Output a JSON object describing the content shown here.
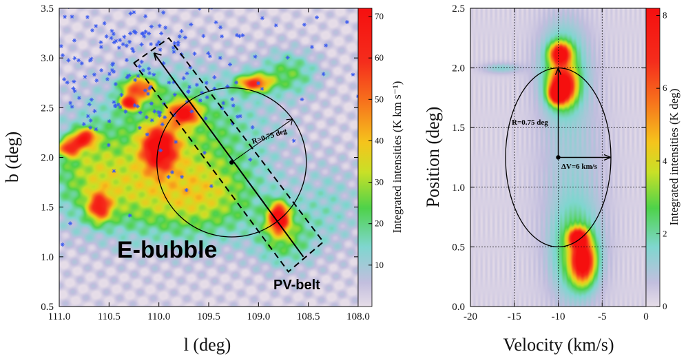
{
  "chart_data": [
    {
      "type": "heatmap",
      "panel": "left",
      "xlabel": "l (deg)",
      "ylabel": "b (deg)",
      "xlim": [
        111.0,
        108.0
      ],
      "ylim": [
        0.5,
        3.5
      ],
      "xticks": [
        "111.0",
        "110.5",
        "110.0",
        "109.5",
        "109.0",
        "108.5",
        "108.0"
      ],
      "yticks": [
        "0.5",
        "1.0",
        "1.5",
        "2.0",
        "2.5",
        "3.0",
        "3.5"
      ],
      "colorbar": {
        "label": "Integrated intensities (K km s⁻¹)",
        "range": [
          0,
          72
        ],
        "ticks": [
          "10",
          "20",
          "30",
          "40",
          "50",
          "60",
          "70"
        ]
      },
      "blobs": [
        {
          "l": 110.2,
          "b": 2.7,
          "sl": 0.12,
          "sb": 0.08,
          "v": 45
        },
        {
          "l": 110.3,
          "b": 2.55,
          "sl": 0.06,
          "sb": 0.05,
          "v": 55
        },
        {
          "l": 110.0,
          "b": 2.1,
          "sl": 0.12,
          "sb": 0.15,
          "v": 60
        },
        {
          "l": 109.75,
          "b": 2.45,
          "sl": 0.1,
          "sb": 0.08,
          "v": 55
        },
        {
          "l": 110.75,
          "b": 2.2,
          "sl": 0.08,
          "sb": 0.06,
          "v": 50
        },
        {
          "l": 110.9,
          "b": 2.1,
          "sl": 0.08,
          "sb": 0.06,
          "v": 45
        },
        {
          "l": 108.8,
          "b": 1.4,
          "sl": 0.07,
          "sb": 0.1,
          "v": 65
        },
        {
          "l": 109.05,
          "b": 2.75,
          "sl": 0.12,
          "sb": 0.06,
          "v": 50
        },
        {
          "l": 110.6,
          "b": 1.5,
          "sl": 0.08,
          "sb": 0.1,
          "v": 45
        },
        {
          "l": 109.5,
          "b": 1.6,
          "sl": 0.4,
          "sb": 0.3,
          "v": 22
        },
        {
          "l": 110.2,
          "b": 1.6,
          "sl": 0.5,
          "sb": 0.3,
          "v": 20
        },
        {
          "l": 109.8,
          "b": 2.3,
          "sl": 0.6,
          "sb": 0.4,
          "v": 22
        },
        {
          "l": 108.75,
          "b": 1.2,
          "sl": 0.2,
          "sb": 0.2,
          "v": 22
        },
        {
          "l": 108.7,
          "b": 2.85,
          "sl": 0.2,
          "sb": 0.15,
          "v": 20
        },
        {
          "l": 110.7,
          "b": 1.9,
          "sl": 0.3,
          "sb": 0.3,
          "v": 18
        },
        {
          "l": 108.3,
          "b": 1.5,
          "sl": 0.25,
          "sb": 0.3,
          "v": 10
        }
      ],
      "stars_center": {
        "l": 110.2,
        "b": 2.9,
        "spread_l": 0.6,
        "spread_b": 0.4,
        "count": 260
      },
      "circle": {
        "l": 109.27,
        "b": 1.95,
        "radius_deg": 0.75
      },
      "radius_label": "R=0.75 deg",
      "pv_belt_line": {
        "l1": 110.05,
        "b1": 3.05,
        "l2": 108.55,
        "b2": 1.0
      },
      "pv_belt_box": [
        [
          110.25,
          2.95
        ],
        [
          109.9,
          3.2
        ],
        [
          108.35,
          1.15
        ],
        [
          108.7,
          0.85
        ]
      ],
      "annotations": {
        "bubble": "E-bubble",
        "belt": "PV-belt"
      }
    },
    {
      "type": "heatmap",
      "panel": "right",
      "xlabel": "Velocity (km/s)",
      "ylabel": "Position (deg)",
      "xlim": [
        -20,
        0
      ],
      "ylim": [
        0.0,
        2.5
      ],
      "xticks": [
        "-20",
        "-15",
        "-10",
        "-5",
        "0"
      ],
      "yticks": [
        "0.0",
        "0.5",
        "1.0",
        "1.5",
        "2.0",
        "2.5"
      ],
      "gridlines_x": [
        -15,
        -10,
        -5
      ],
      "gridlines_y": [
        0.5,
        1.0,
        1.5,
        2.0
      ],
      "colorbar": {
        "label": "Integrated intensities (K deg)",
        "range": [
          0,
          8.2
        ],
        "ticks": [
          "0",
          "2",
          "4",
          "6",
          "8"
        ]
      },
      "blobs": [
        {
          "v": -9.8,
          "p": 2.12,
          "sv": 0.8,
          "sp": 0.06,
          "val": 7.5
        },
        {
          "v": -9.5,
          "p": 1.85,
          "sv": 1.0,
          "sp": 0.1,
          "val": 7.8
        },
        {
          "v": -10.2,
          "p": 1.78,
          "sv": 0.6,
          "sp": 0.05,
          "val": 6.0
        },
        {
          "v": -7.2,
          "p": 0.38,
          "sv": 0.9,
          "sp": 0.12,
          "val": 7.5
        },
        {
          "v": -7.8,
          "p": 0.58,
          "sv": 0.7,
          "sp": 0.05,
          "val": 7.0
        },
        {
          "v": -9.5,
          "p": 2.0,
          "sv": 1.8,
          "sp": 0.25,
          "val": 2.5
        },
        {
          "v": -8.0,
          "p": 0.45,
          "sv": 1.8,
          "sp": 0.25,
          "val": 2.5
        },
        {
          "v": -8.5,
          "p": 1.1,
          "sv": 2.5,
          "sp": 0.6,
          "val": 0.9
        },
        {
          "v": -16.5,
          "p": 2.0,
          "sv": 1.5,
          "sp": 0.03,
          "val": 1.2
        }
      ],
      "ellipse": {
        "v": -10.0,
        "p": 1.25,
        "rv": 6.0,
        "rp": 0.75
      },
      "radius_label": "R=0.75 deg",
      "velocity_label": "ΔV=6 km/s"
    }
  ]
}
